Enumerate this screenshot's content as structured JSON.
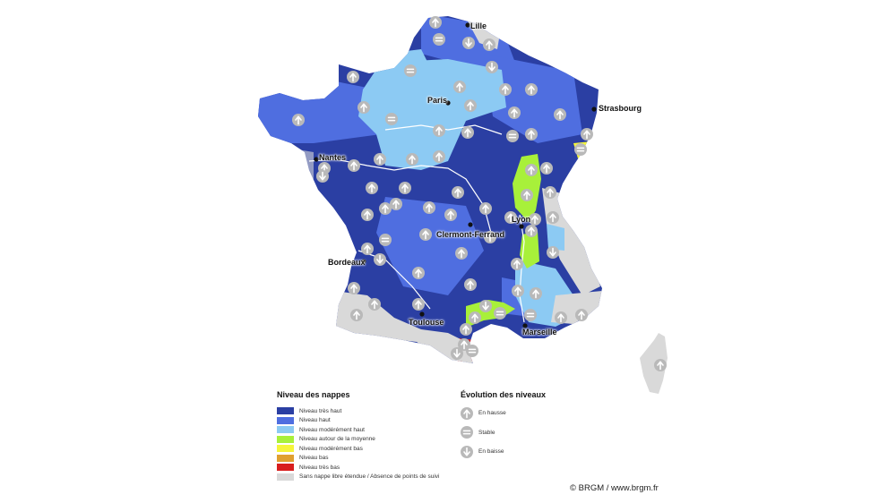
{
  "map": {
    "cities": [
      {
        "name": "Lille"
      },
      {
        "name": "Paris"
      },
      {
        "name": "Strasbourg"
      },
      {
        "name": "Nantes"
      },
      {
        "name": "Lyon"
      },
      {
        "name": "Clermont-Ferrand"
      },
      {
        "name": "Bordeaux"
      },
      {
        "name": "Toulouse"
      },
      {
        "name": "Marseille"
      }
    ]
  },
  "legend": {
    "title": "Niveau des nappes",
    "items": [
      {
        "label": "Niveau très haut",
        "color": "#2b3fa3"
      },
      {
        "label": "Niveau haut",
        "color": "#4f6ee0"
      },
      {
        "label": "Niveau modérément haut",
        "color": "#8ccaf3"
      },
      {
        "label": "Niveau autour de la moyenne",
        "color": "#a8f03a"
      },
      {
        "label": "Niveau modérément bas",
        "color": "#f5f53a"
      },
      {
        "label": "Niveau bas",
        "color": "#e0a030"
      },
      {
        "label": "Niveau très bas",
        "color": "#d81e1e"
      },
      {
        "label": "Sans nappe libre étendue / Absence de points de suivi",
        "color": "#d9d9d9"
      }
    ]
  },
  "evolution": {
    "title": "Évolution des niveaux",
    "items": [
      {
        "label": "En hausse",
        "icon": "arrow-up-icon"
      },
      {
        "label": "Stable",
        "icon": "equals-icon"
      },
      {
        "label": "En baisse",
        "icon": "arrow-down-icon"
      }
    ]
  },
  "copyright": "© BRGM / www.brgm.fr"
}
